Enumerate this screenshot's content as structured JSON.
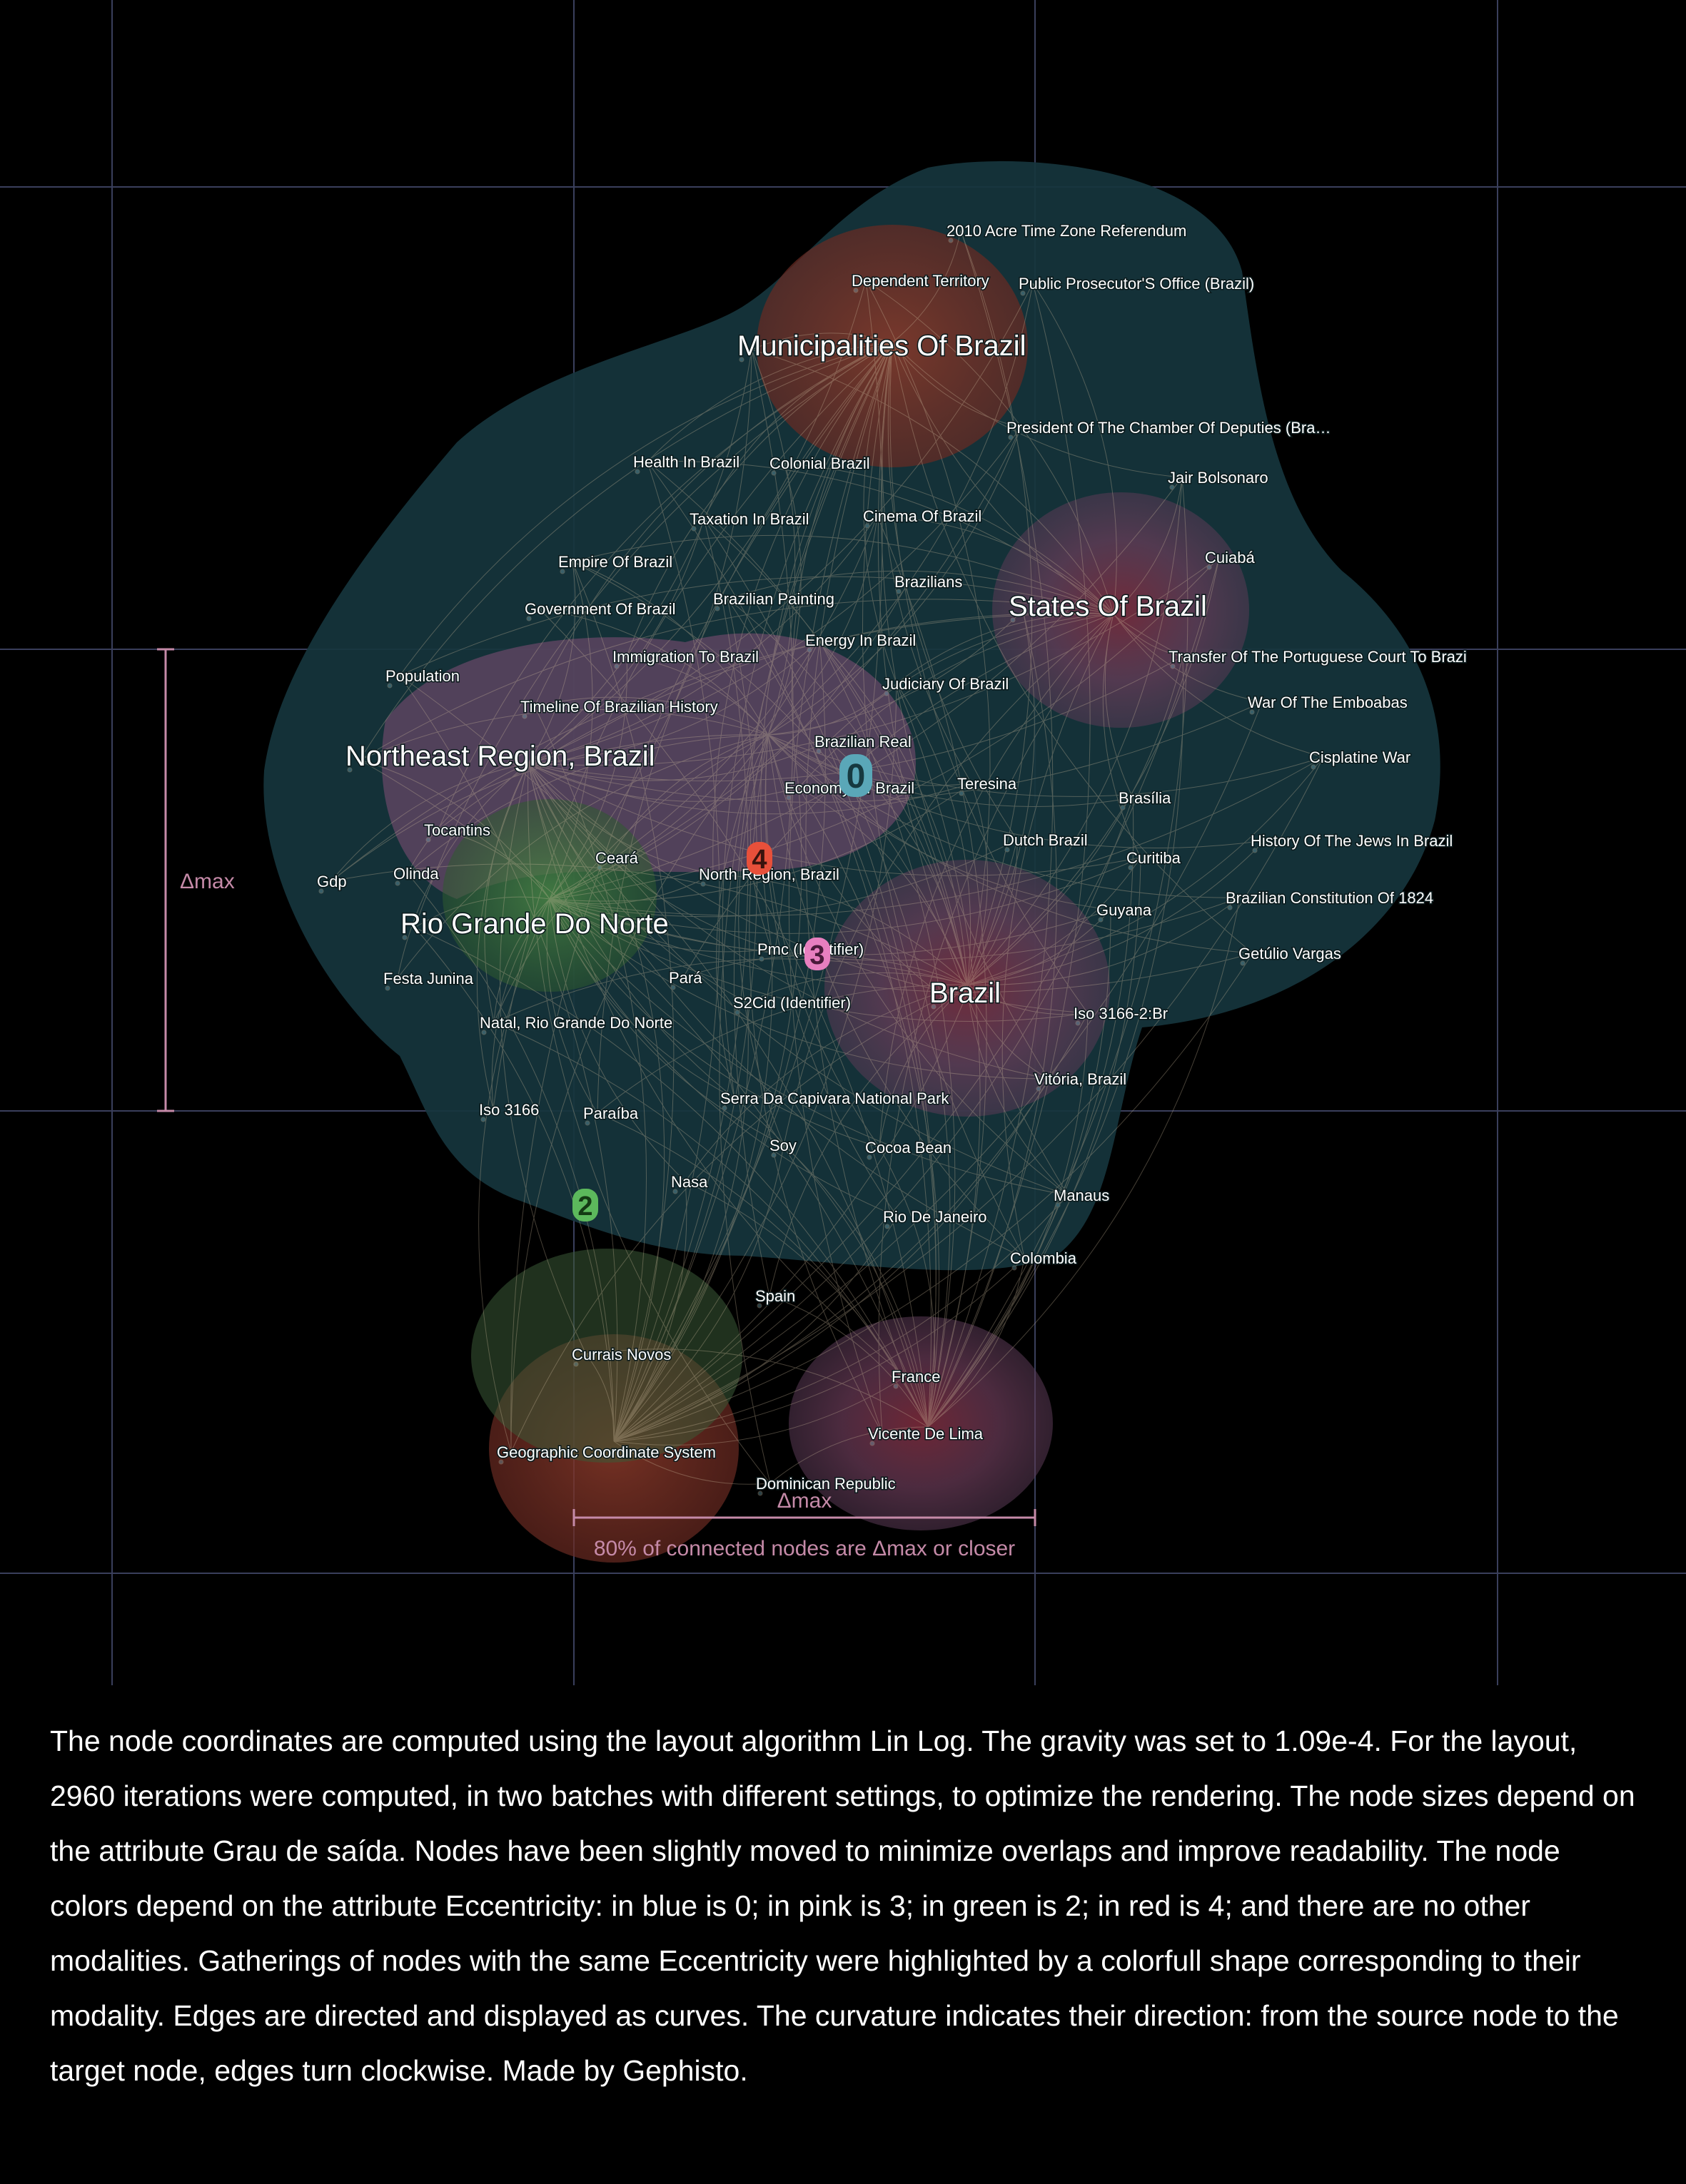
{
  "nodes": [
    {
      "label": "2010 Acre Time Zone Referendum",
      "size": "small"
    },
    {
      "label": "Dependent Territory",
      "size": "small"
    },
    {
      "label": "Public Prosecutor'S Office (Brazil)",
      "size": "small"
    },
    {
      "label": "Municipalities Of Brazil",
      "size": "large"
    },
    {
      "label": "President Of The Chamber Of Deputies (Bra…",
      "size": "small"
    },
    {
      "label": "Health In Brazil",
      "size": "small"
    },
    {
      "label": "Colonial Brazil",
      "size": "small"
    },
    {
      "label": "Jair Bolsonaro",
      "size": "small"
    },
    {
      "label": "Taxation In Brazil",
      "size": "small"
    },
    {
      "label": "Cinema Of Brazil",
      "size": "small"
    },
    {
      "label": "Empire Of Brazil",
      "size": "small"
    },
    {
      "label": "Cuiabá",
      "size": "small"
    },
    {
      "label": "Brazilians",
      "size": "small"
    },
    {
      "label": "Government Of Brazil",
      "size": "small"
    },
    {
      "label": "Brazilian Painting",
      "size": "small"
    },
    {
      "label": "States Of Brazil",
      "size": "large"
    },
    {
      "label": "Energy In Brazil",
      "size": "small"
    },
    {
      "label": "Immigration To Brazil",
      "size": "small"
    },
    {
      "label": "Transfer Of The Portuguese Court To Brazi",
      "size": "small"
    },
    {
      "label": "Population",
      "size": "small"
    },
    {
      "label": "Judiciary Of Brazil",
      "size": "small"
    },
    {
      "label": "Timeline Of Brazilian History",
      "size": "small"
    },
    {
      "label": "War Of The Emboabas",
      "size": "small"
    },
    {
      "label": "Brazilian Real",
      "size": "small"
    },
    {
      "label": "Northeast Region, Brazil",
      "size": "large"
    },
    {
      "label": "Cisplatine War",
      "size": "small"
    },
    {
      "label": "Economy Of Brazil",
      "size": "small"
    },
    {
      "label": "Teresina",
      "size": "small"
    },
    {
      "label": "Brasília",
      "size": "small"
    },
    {
      "label": "Tocantins",
      "size": "small"
    },
    {
      "label": "Dutch Brazil",
      "size": "small"
    },
    {
      "label": "History Of The Jews In Brazil",
      "size": "small"
    },
    {
      "label": "Ceará",
      "size": "small"
    },
    {
      "label": "Curitiba",
      "size": "small"
    },
    {
      "label": "Gdp",
      "size": "small"
    },
    {
      "label": "Olinda",
      "size": "small"
    },
    {
      "label": "North Region, Brazil",
      "size": "small"
    },
    {
      "label": "Brazilian Constitution Of 1824",
      "size": "small"
    },
    {
      "label": "Guyana",
      "size": "small"
    },
    {
      "label": "Rio Grande Do Norte",
      "size": "large"
    },
    {
      "label": "Pmc (Identifier)",
      "size": "small"
    },
    {
      "label": "Getúlio Vargas",
      "size": "small"
    },
    {
      "label": "Festa Junina",
      "size": "small"
    },
    {
      "label": "Pará",
      "size": "small"
    },
    {
      "label": "Brazil",
      "size": "large"
    },
    {
      "label": "S2Cid (Identifier)",
      "size": "small"
    },
    {
      "label": "Iso 3166-2:Br",
      "size": "small"
    },
    {
      "label": "Natal, Rio Grande Do Norte",
      "size": "small"
    },
    {
      "label": "Vitória, Brazil",
      "size": "small"
    },
    {
      "label": "Serra Da Capivara National Park",
      "size": "small"
    },
    {
      "label": "Iso 3166",
      "size": "small"
    },
    {
      "label": "Paraíba",
      "size": "small"
    },
    {
      "label": "Soy",
      "size": "small"
    },
    {
      "label": "Cocoa Bean",
      "size": "small"
    },
    {
      "label": "Nasa",
      "size": "small"
    },
    {
      "label": "Manaus",
      "size": "small"
    },
    {
      "label": "Rio De Janeiro",
      "size": "small"
    },
    {
      "label": "Colombia",
      "size": "small"
    },
    {
      "label": "Spain",
      "size": "small"
    },
    {
      "label": "Currais Novos",
      "size": "small"
    },
    {
      "label": "France",
      "size": "small"
    },
    {
      "label": "Vicente De Lima",
      "size": "small"
    },
    {
      "label": "Geographic Coordinate System",
      "size": "small"
    },
    {
      "label": "Dominican Republic",
      "size": "small"
    }
  ],
  "clusters": [
    {
      "label": "0",
      "color": "#5aa7b8"
    },
    {
      "label": "4",
      "color": "#e8503a"
    },
    {
      "label": "3",
      "color": "#e77fbf"
    },
    {
      "label": "2",
      "color": "#5cb85c"
    }
  ],
  "measure": {
    "symbol": "Δmax",
    "caption": "80% of connected nodes are Δmax or closer"
  },
  "colors": {
    "background": "#000000",
    "grid": "#3a3f5c",
    "hull": "#16353d",
    "edge": "#c9b79a"
  },
  "description": "The node coordinates are computed using the layout algorithm Lin Log. The gravity was set to 1.09e-4. For the layout, 2960 iterations were computed, in two batches with different settings, to optimize the rendering. The node sizes depend on the attribute Grau de saída. Nodes have been slightly moved to minimize overlaps and improve readability. The node colors depend on the attribute Eccentricity: in blue is 0; in pink is 3; in green is 2; in red is 4; and there are no other modalities. Gatherings of nodes with the same Eccentricity were highlighted by a colorfull shape corresponding to their modality. Edges are directed and displayed as curves. The curvature indicates their direction: from the source node to the target node, edges turn clockwise.  Made by Gephisto."
}
